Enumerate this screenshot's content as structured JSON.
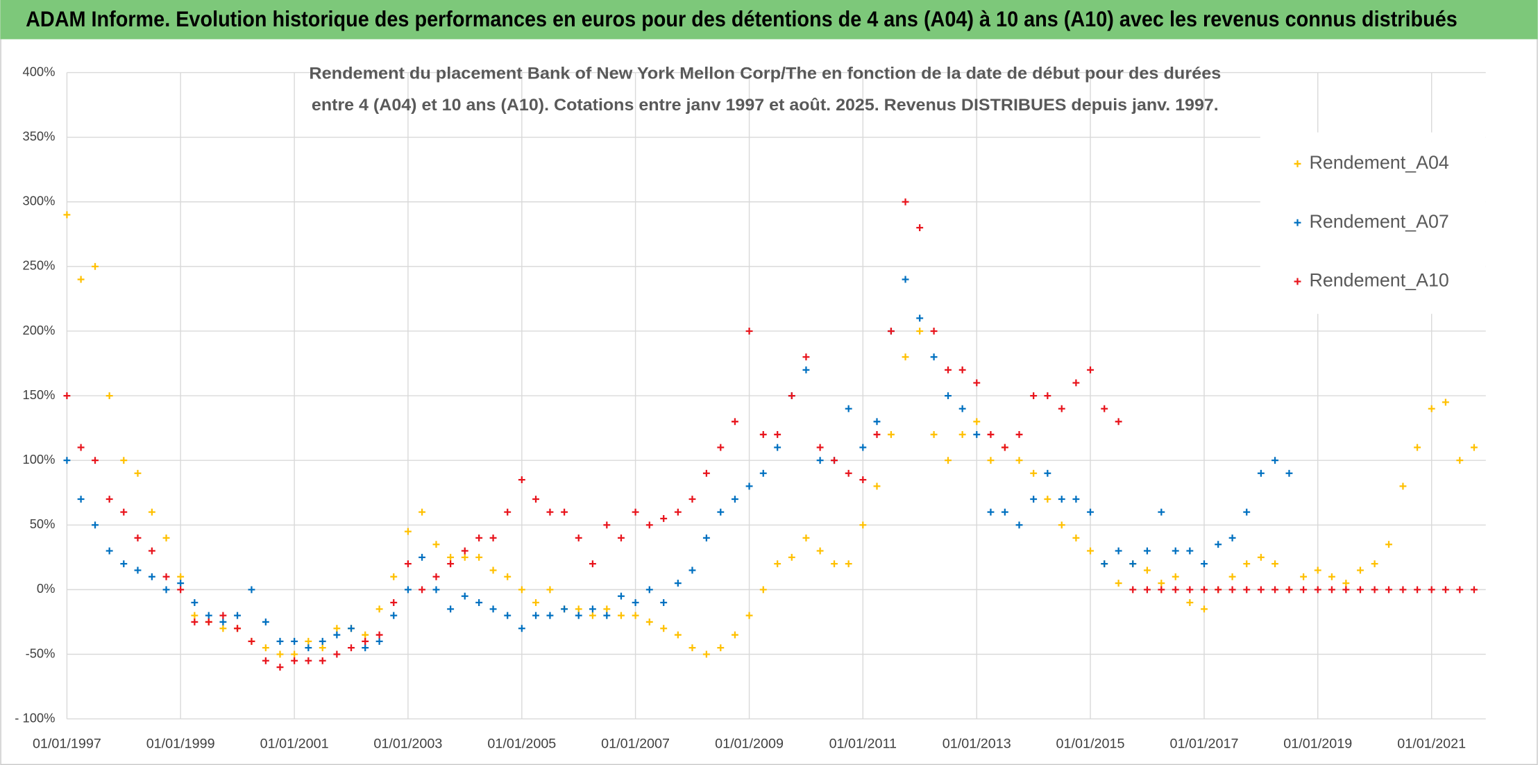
{
  "header": {
    "title": "ADAM Informe. Evolution historique des performances en euros pour des détentions de 4 ans (A04) à 10 ans (A10) avec les revenus connus distribués"
  },
  "chart_data": {
    "type": "scatter",
    "title": "Rendement du placement Bank of New York Mellon Corp/The en fonction de la date de début pour des durées",
    "subtitle": "entre 4 (A04) et 10 ans (A10). Cotations entre janv 1997 et août. 2025. Revenus DISTRIBUES depuis janv. 1997.",
    "x": [
      "01/01/1997",
      "01/04/1997",
      "01/07/1997",
      "01/10/1997",
      "01/01/1998",
      "01/04/1998",
      "01/07/1998",
      "01/10/1998",
      "01/01/1999",
      "01/04/1999",
      "01/07/1999",
      "01/10/1999",
      "01/01/2000",
      "01/04/2000",
      "01/07/2000",
      "01/10/2000",
      "01/01/2001",
      "01/04/2001",
      "01/07/2001",
      "01/10/2001",
      "01/01/2002",
      "01/04/2002",
      "01/07/2002",
      "01/10/2002",
      "01/01/2003",
      "01/04/2003",
      "01/07/2003",
      "01/10/2003",
      "01/01/2004",
      "01/04/2004",
      "01/07/2004",
      "01/10/2004",
      "01/01/2005",
      "01/04/2005",
      "01/07/2005",
      "01/10/2005",
      "01/01/2006",
      "01/04/2006",
      "01/07/2006",
      "01/10/2006",
      "01/01/2007",
      "01/04/2007",
      "01/07/2007",
      "01/10/2007",
      "01/01/2008",
      "01/04/2008",
      "01/07/2008",
      "01/10/2008",
      "01/01/2009",
      "01/04/2009",
      "01/07/2009",
      "01/10/2009",
      "01/01/2010",
      "01/04/2010",
      "01/07/2010",
      "01/10/2010",
      "01/01/2011",
      "01/04/2011",
      "01/07/2011",
      "01/10/2011",
      "01/01/2012",
      "01/04/2012",
      "01/07/2012",
      "01/10/2012",
      "01/01/2013",
      "01/04/2013",
      "01/07/2013",
      "01/10/2013",
      "01/01/2014",
      "01/04/2014",
      "01/07/2014",
      "01/10/2014",
      "01/01/2015",
      "01/04/2015",
      "01/07/2015",
      "01/10/2015",
      "01/01/2016",
      "01/04/2016",
      "01/07/2016",
      "01/10/2016",
      "01/01/2017",
      "01/04/2017",
      "01/07/2017",
      "01/10/2017",
      "01/01/2018",
      "01/04/2018",
      "01/07/2018",
      "01/10/2018",
      "01/01/2019",
      "01/04/2019",
      "01/07/2019",
      "01/10/2019",
      "01/01/2020",
      "01/04/2020",
      "01/07/2020",
      "01/10/2020",
      "01/01/2021",
      "01/04/2021",
      "01/07/2021",
      "01/10/2021"
    ],
    "series": [
      {
        "name": "Rendement_A04",
        "color": "#ffc000",
        "values": [
          290,
          240,
          250,
          150,
          100,
          90,
          60,
          40,
          10,
          -20,
          -25,
          -30,
          -30,
          -40,
          -45,
          -50,
          -50,
          -40,
          -45,
          -30,
          -30,
          -35,
          -15,
          10,
          45,
          60,
          35,
          25,
          25,
          25,
          15,
          10,
          0,
          -10,
          0,
          -15,
          -15,
          -20,
          -15,
          -20,
          -20,
          -25,
          -30,
          -35,
          -45,
          -50,
          -45,
          -35,
          -20,
          0,
          20,
          25,
          40,
          30,
          20,
          20,
          50,
          80,
          120,
          180,
          200,
          120,
          100,
          120,
          130,
          100,
          110,
          100,
          90,
          70,
          50,
          40,
          30,
          20,
          5,
          20,
          15,
          5,
          10,
          -10,
          -15,
          0,
          10,
          20,
          25,
          20,
          0,
          10,
          15,
          10,
          5,
          15,
          20,
          35,
          80,
          110,
          140,
          145,
          100,
          110
        ]
      },
      {
        "name": "Rendement_A07",
        "color": "#0070c0",
        "values": [
          100,
          70,
          50,
          30,
          20,
          15,
          10,
          0,
          5,
          -10,
          -20,
          -25,
          -20,
          0,
          -25,
          -40,
          -40,
          -45,
          -40,
          -35,
          -30,
          -45,
          -40,
          -20,
          0,
          25,
          0,
          -15,
          -5,
          -10,
          -15,
          -20,
          -30,
          -20,
          -20,
          -15,
          -20,
          -15,
          -20,
          -5,
          -10,
          0,
          -10,
          5,
          15,
          40,
          60,
          70,
          80,
          90,
          110,
          150,
          170,
          100,
          100,
          140,
          110,
          130,
          200,
          240,
          210,
          180,
          150,
          140,
          120,
          60,
          60,
          50,
          70,
          90,
          70,
          70,
          60,
          20,
          30,
          20,
          30,
          60,
          30,
          30,
          20,
          35,
          40,
          60,
          90,
          100,
          90,
          null,
          null,
          null,
          null,
          null,
          null,
          null,
          null,
          null,
          null,
          null,
          null,
          null
        ]
      },
      {
        "name": "Rendement_A10",
        "color": "#e8141c",
        "values": [
          150,
          110,
          100,
          70,
          60,
          40,
          30,
          10,
          0,
          -25,
          -25,
          -20,
          -30,
          -40,
          -55,
          -60,
          -55,
          -55,
          -55,
          -50,
          -45,
          -40,
          -35,
          -10,
          20,
          0,
          10,
          20,
          30,
          40,
          40,
          60,
          85,
          70,
          60,
          60,
          40,
          20,
          50,
          40,
          60,
          50,
          55,
          60,
          70,
          90,
          110,
          130,
          200,
          120,
          120,
          150,
          180,
          110,
          100,
          90,
          85,
          120,
          200,
          300,
          280,
          200,
          170,
          170,
          160,
          120,
          110,
          120,
          150,
          150,
          140,
          160,
          170,
          140,
          130,
          0,
          0,
          0,
          0,
          0,
          0,
          0,
          0,
          0,
          0,
          0,
          0,
          0,
          0,
          0,
          0,
          0,
          0,
          0,
          0,
          0,
          0,
          0,
          0,
          0
        ]
      }
    ],
    "xlim": [
      "01/01/1997",
      "15/12/2021"
    ],
    "xticks": [
      "01/01/1997",
      "01/01/1999",
      "01/01/2001",
      "01/01/2003",
      "01/01/2005",
      "01/01/2007",
      "01/01/2009",
      "01/01/2011",
      "01/01/2013",
      "01/01/2015",
      "01/01/2017",
      "01/01/2019",
      "01/01/2021"
    ],
    "ylim": [
      -100,
      400
    ],
    "yticks": [
      {
        "value": -100,
        "label": "- 100%"
      },
      {
        "value": -50,
        "label": "-50%"
      },
      {
        "value": 0,
        "label": "0%"
      },
      {
        "value": 50,
        "label": "50%"
      },
      {
        "value": 100,
        "label": "100%"
      },
      {
        "value": 150,
        "label": "150%"
      },
      {
        "value": 200,
        "label": "200%"
      },
      {
        "value": 250,
        "label": "250%"
      },
      {
        "value": 300,
        "label": "300%"
      },
      {
        "value": 350,
        "label": "350%"
      },
      {
        "value": 400,
        "label": "400%"
      }
    ],
    "grid": true,
    "legend": "right"
  }
}
